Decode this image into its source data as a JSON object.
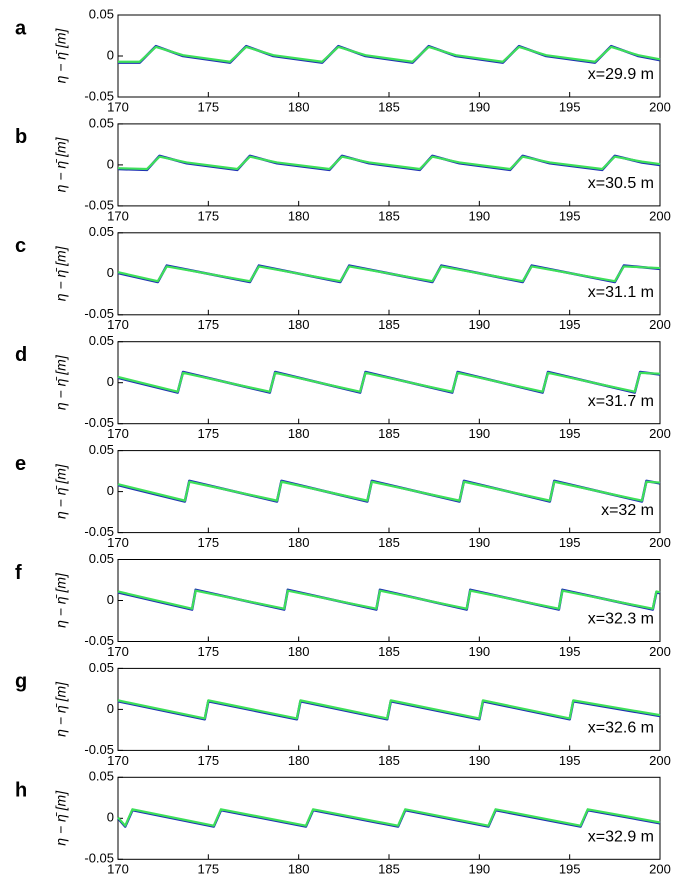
{
  "chart_data": [
    {
      "type": "line",
      "panel_label": "a",
      "ylabel": "η − η̄ [m]",
      "annotation": "x=29.9 m",
      "x": [
        170,
        171.2,
        172.1,
        173.6,
        176.2,
        177.1,
        178.6,
        181.3,
        182.2,
        183.7,
        186.3,
        187.2,
        188.7,
        191.3,
        192.2,
        193.7,
        196.4,
        197.3,
        198.8,
        200
      ],
      "series": [
        {
          "color": "#1e2fb4",
          "values": [
            -0.008,
            -0.008,
            0.012,
            0,
            -0.008,
            0.012,
            0,
            -0.008,
            0.012,
            0,
            -0.008,
            0.012,
            0,
            -0.008,
            0.012,
            0,
            -0.008,
            0.012,
            0,
            -0.005
          ]
        },
        {
          "color": "#3ee05a",
          "values": [
            -0.007,
            -0.007,
            0.011,
            0.001,
            -0.007,
            0.011,
            0.001,
            -0.007,
            0.011,
            0.001,
            -0.007,
            0.011,
            0.001,
            -0.007,
            0.011,
            0.001,
            -0.007,
            0.011,
            0.001,
            -0.004
          ]
        }
      ],
      "xlim": [
        170,
        200
      ],
      "xticks": [
        170,
        175,
        180,
        185,
        190,
        195,
        200
      ],
      "ylim": [
        -0.05,
        0.05
      ],
      "yticks": [
        0.05,
        0,
        -0.05
      ]
    },
    {
      "type": "line",
      "panel_label": "b",
      "ylabel": "η − η̄ [m]",
      "annotation": "x=30.5 m",
      "x": [
        170,
        171.6,
        172.3,
        173.8,
        176.6,
        177.3,
        178.8,
        181.7,
        182.4,
        183.9,
        186.7,
        187.4,
        188.9,
        191.7,
        192.4,
        193.9,
        196.8,
        197.5,
        199,
        200
      ],
      "series": [
        {
          "color": "#1e2fb4",
          "values": [
            -0.005,
            -0.006,
            0.011,
            0.002,
            -0.006,
            0.011,
            0.002,
            -0.006,
            0.011,
            0.002,
            -0.006,
            0.011,
            0.002,
            -0.006,
            0.011,
            0.002,
            -0.006,
            0.011,
            0.003,
            0
          ]
        },
        {
          "color": "#3ee05a",
          "values": [
            -0.004,
            -0.005,
            0.01,
            0.003,
            -0.005,
            0.01,
            0.003,
            -0.005,
            0.01,
            0.003,
            -0.005,
            0.01,
            0.003,
            -0.005,
            0.01,
            0.003,
            -0.005,
            0.01,
            0.004,
            0.001
          ]
        }
      ],
      "xlim": [
        170,
        200
      ],
      "xticks": [
        170,
        175,
        180,
        185,
        190,
        195,
        200
      ],
      "ylim": [
        -0.05,
        0.05
      ],
      "yticks": [
        0.05,
        0,
        -0.05
      ]
    },
    {
      "type": "line",
      "panel_label": "c",
      "ylabel": "η − η̄ [m]",
      "annotation": "x=31.1 m",
      "x": [
        170,
        172.2,
        172.7,
        177.3,
        177.8,
        182.3,
        182.8,
        187.4,
        187.9,
        192.4,
        192.9,
        197.5,
        198,
        200
      ],
      "series": [
        {
          "color": "#1e2fb4",
          "values": [
            0.001,
            -0.01,
            0.01,
            -0.01,
            0.01,
            -0.01,
            0.01,
            -0.01,
            0.01,
            -0.01,
            0.01,
            -0.01,
            0.01,
            0.006
          ]
        },
        {
          "color": "#3ee05a",
          "values": [
            0.002,
            -0.009,
            0.009,
            -0.009,
            0.009,
            -0.009,
            0.009,
            -0.009,
            0.009,
            -0.009,
            0.009,
            -0.009,
            0.009,
            0.007
          ]
        }
      ],
      "xlim": [
        170,
        200
      ],
      "xticks": [
        170,
        175,
        180,
        185,
        190,
        195,
        200
      ],
      "ylim": [
        -0.05,
        0.05
      ],
      "yticks": [
        0.05,
        0,
        -0.05
      ]
    },
    {
      "type": "line",
      "panel_label": "d",
      "ylabel": "η − η̄ [m]",
      "annotation": "x=31.7 m",
      "x": [
        170,
        173.3,
        173.6,
        178.4,
        178.7,
        183.4,
        183.7,
        188.5,
        188.8,
        193.5,
        193.8,
        198.6,
        198.9,
        200
      ],
      "series": [
        {
          "color": "#1e2fb4",
          "values": [
            0.006,
            -0.012,
            0.013,
            -0.012,
            0.013,
            -0.012,
            0.013,
            -0.012,
            0.013,
            -0.012,
            0.013,
            -0.012,
            0.013,
            0.01
          ]
        },
        {
          "color": "#3ee05a",
          "values": [
            0.007,
            -0.011,
            0.012,
            -0.011,
            0.012,
            -0.011,
            0.012,
            -0.011,
            0.012,
            -0.011,
            0.012,
            -0.011,
            0.012,
            0.011
          ]
        }
      ],
      "xlim": [
        170,
        200
      ],
      "xticks": [
        170,
        175,
        180,
        185,
        190,
        195,
        200
      ],
      "ylim": [
        -0.05,
        0.05
      ],
      "yticks": [
        0.05,
        0,
        -0.05
      ]
    },
    {
      "type": "line",
      "panel_label": "e",
      "ylabel": "η − η̄ [m]",
      "annotation": "x=32 m",
      "x": [
        170,
        173.7,
        173.95,
        178.8,
        179.05,
        183.8,
        184.05,
        188.9,
        189.15,
        193.9,
        194.15,
        199,
        199.25,
        200
      ],
      "series": [
        {
          "color": "#1e2fb4",
          "values": [
            0.008,
            -0.012,
            0.013,
            -0.012,
            0.013,
            -0.012,
            0.013,
            -0.012,
            0.013,
            -0.012,
            0.013,
            -0.012,
            0.013,
            0.01
          ]
        },
        {
          "color": "#3ee05a",
          "values": [
            0.009,
            -0.011,
            0.012,
            -0.011,
            0.012,
            -0.011,
            0.012,
            -0.011,
            0.012,
            -0.011,
            0.012,
            -0.011,
            0.012,
            0.011
          ]
        }
      ],
      "xlim": [
        170,
        200
      ],
      "xticks": [
        170,
        175,
        180,
        185,
        190,
        195,
        200
      ],
      "ylim": [
        -0.05,
        0.05
      ],
      "yticks": [
        0.05,
        0,
        -0.05
      ]
    },
    {
      "type": "line",
      "panel_label": "f",
      "ylabel": "η − η̄ [m]",
      "annotation": "x=32.3 m",
      "x": [
        170,
        174.1,
        174.3,
        179.2,
        179.4,
        184.3,
        184.5,
        189.3,
        189.5,
        194.4,
        194.6,
        199.6,
        199.8,
        200
      ],
      "series": [
        {
          "color": "#1e2fb4",
          "values": [
            0.01,
            -0.011,
            0.013,
            -0.011,
            0.013,
            -0.011,
            0.013,
            -0.011,
            0.013,
            -0.011,
            0.013,
            -0.011,
            0.01,
            0.009
          ]
        },
        {
          "color": "#3ee05a",
          "values": [
            0.011,
            -0.01,
            0.012,
            -0.01,
            0.012,
            -0.01,
            0.012,
            -0.01,
            0.012,
            -0.01,
            0.012,
            -0.01,
            0.011,
            0.01
          ]
        }
      ],
      "xlim": [
        170,
        200
      ],
      "xticks": [
        170,
        175,
        180,
        185,
        190,
        195,
        200
      ],
      "ylim": [
        -0.05,
        0.05
      ],
      "yticks": [
        0.05,
        0,
        -0.05
      ]
    },
    {
      "type": "line",
      "panel_label": "g",
      "ylabel": "η − η̄ [m]",
      "annotation": "x=32.6 m",
      "x": [
        170,
        174.8,
        175,
        179.9,
        180.1,
        184.9,
        185.1,
        190,
        190.2,
        195,
        195.2,
        200
      ],
      "series": [
        {
          "color": "#1e2fb4",
          "values": [
            0.01,
            -0.012,
            0.01,
            -0.012,
            0.01,
            -0.012,
            0.01,
            -0.012,
            0.01,
            -0.012,
            0.01,
            -0.008
          ]
        },
        {
          "color": "#3ee05a",
          "values": [
            0.011,
            -0.011,
            0.011,
            -0.011,
            0.011,
            -0.011,
            0.011,
            -0.011,
            0.011,
            -0.011,
            0.011,
            -0.007
          ]
        }
      ],
      "xlim": [
        170,
        200
      ],
      "xticks": [
        170,
        175,
        180,
        185,
        190,
        195,
        200
      ],
      "ylim": [
        -0.05,
        0.05
      ],
      "yticks": [
        0.05,
        0,
        -0.05
      ]
    },
    {
      "type": "line",
      "panel_label": "h",
      "ylabel": "η − η̄ [m]",
      "annotation": "x=32.9 m",
      "x": [
        170,
        170.4,
        170.8,
        175.3,
        175.7,
        180.4,
        180.8,
        185.5,
        185.9,
        190.5,
        190.9,
        195.6,
        196,
        200
      ],
      "series": [
        {
          "color": "#1e2fb4",
          "values": [
            0,
            -0.01,
            0.01,
            -0.01,
            0.01,
            -0.01,
            0.01,
            -0.01,
            0.01,
            -0.01,
            0.01,
            -0.01,
            0.01,
            -0.006
          ]
        },
        {
          "color": "#3ee05a",
          "values": [
            0.001,
            -0.009,
            0.011,
            -0.009,
            0.011,
            -0.009,
            0.011,
            -0.009,
            0.011,
            -0.009,
            0.011,
            -0.009,
            0.011,
            -0.005
          ]
        }
      ],
      "xlim": [
        170,
        200
      ],
      "xticks": [
        170,
        175,
        180,
        185,
        190,
        195,
        200
      ],
      "ylim": [
        -0.05,
        0.05
      ],
      "yticks": [
        0.05,
        0,
        -0.05
      ]
    }
  ]
}
